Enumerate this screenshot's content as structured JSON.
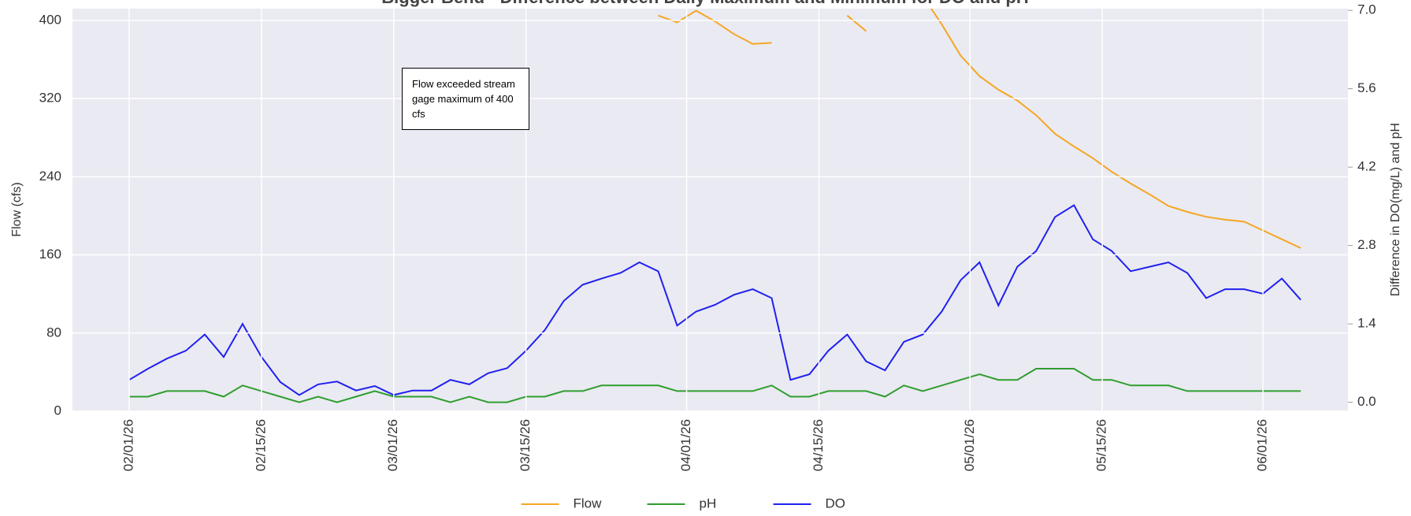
{
  "chart_data": {
    "type": "line",
    "title": "Bigger Bend - Difference between Daily Maximum and Minimum for DO and pH",
    "y_label": "Flow (cfs)",
    "y2_label": "Difference in DO(mg/L) and pH",
    "annotation": "Flow exceeded stream gage maximum of 400 cfs",
    "x": [
      "02/01/26",
      "02/03/26",
      "02/05/26",
      "02/07/26",
      "02/09/26",
      "02/11/26",
      "02/13/26",
      "02/15/26",
      "02/17/26",
      "02/19/26",
      "02/21/26",
      "02/23/26",
      "02/25/26",
      "02/27/26",
      "03/01/26",
      "03/03/26",
      "03/05/26",
      "03/07/26",
      "03/09/26",
      "03/11/26",
      "03/13/26",
      "03/15/26",
      "03/17/26",
      "03/19/26",
      "03/21/26",
      "03/23/26",
      "03/25/26",
      "03/27/26",
      "03/29/26",
      "03/31/26",
      "04/02/26",
      "04/04/26",
      "04/06/26",
      "04/08/26",
      "04/10/26",
      "04/12/26",
      "04/14/26",
      "04/16/26",
      "04/18/26",
      "04/20/26",
      "04/22/26",
      "04/24/26",
      "04/26/26",
      "04/28/26",
      "04/30/26",
      "05/02/26",
      "05/04/26",
      "05/06/26",
      "05/08/26",
      "05/10/26",
      "05/12/26",
      "05/14/26",
      "05/16/26",
      "05/18/26",
      "05/20/26",
      "05/22/26",
      "05/24/26",
      "05/26/26",
      "05/28/26",
      "05/30/26",
      "06/01/26",
      "06/03/26",
      "06/05/26"
    ],
    "xlim": [
      "01/26/26",
      "06/10/26"
    ],
    "xticks": [
      "02/01/26",
      "02/15/26",
      "03/01/26",
      "03/15/26",
      "04/01/26",
      "04/15/26",
      "05/01/26",
      "05/15/26",
      "06/01/26"
    ],
    "ylim": [
      0,
      412
    ],
    "yticks": [
      0,
      80,
      160,
      240,
      320,
      400
    ],
    "y2lim": [
      -0.16,
      7.03
    ],
    "y2ticks": [
      {
        "value": 0,
        "label": "0.0"
      },
      1.4,
      2.8,
      4.2,
      5.6,
      {
        "value": 7,
        "label": "7.0"
      }
    ],
    "grid": true,
    "legend": "lower center",
    "series": [
      {
        "name": "Flow",
        "color": "#f5a623",
        "values": [
          null,
          null,
          null,
          null,
          null,
          null,
          null,
          null,
          null,
          null,
          null,
          null,
          null,
          null,
          null,
          null,
          null,
          null,
          null,
          null,
          null,
          null,
          null,
          null,
          null,
          null,
          null,
          null,
          405,
          398,
          410,
          399,
          386,
          376,
          377,
          null,
          null,
          null,
          405,
          389,
          null,
          null,
          425,
          396,
          364,
          343,
          329,
          318,
          303,
          284,
          271,
          259,
          245,
          233,
          222,
          210,
          204,
          199,
          196,
          194,
          185,
          176,
          167
        ]
      },
      {
        "name": "pH",
        "color": "#2e9e2e",
        "axis": "y2",
        "values": [
          0.1,
          0.1,
          0.2,
          0.2,
          0.2,
          0.1,
          0.3,
          0.2,
          0.1,
          0.0,
          0.1,
          0.0,
          0.1,
          0.2,
          0.1,
          0.1,
          0.1,
          0.0,
          0.1,
          0.0,
          0.0,
          0.1,
          0.1,
          0.2,
          0.2,
          0.3,
          0.3,
          0.3,
          0.3,
          0.2,
          0.2,
          0.2,
          0.2,
          0.2,
          0.3,
          0.1,
          0.1,
          0.2,
          0.2,
          0.2,
          0.1,
          0.3,
          0.2,
          0.3,
          0.4,
          0.5,
          0.4,
          0.4,
          0.6,
          0.6,
          0.6,
          0.4,
          0.4,
          0.3,
          0.3,
          0.3,
          0.2,
          0.2,
          0.2,
          0.2,
          0.2,
          0.2,
          0.2
        ]
      },
      {
        "name": "DO",
        "color": "#2020f0",
        "axis": "y2",
        "values": [
          0.4,
          0.6,
          0.78,
          0.92,
          1.21,
          0.81,
          1.4,
          0.81,
          0.36,
          0.13,
          0.32,
          0.37,
          0.21,
          0.29,
          0.13,
          0.21,
          0.21,
          0.4,
          0.32,
          0.52,
          0.61,
          0.92,
          1.29,
          1.81,
          2.1,
          2.21,
          2.31,
          2.5,
          2.34,
          1.37,
          1.62,
          1.74,
          1.92,
          2.02,
          1.86,
          0.4,
          0.5,
          0.92,
          1.21,
          0.73,
          0.57,
          1.08,
          1.21,
          1.62,
          2.18,
          2.5,
          1.73,
          2.42,
          2.7,
          3.31,
          3.52,
          2.91,
          2.7,
          2.34,
          2.42,
          2.5,
          2.31,
          1.86,
          2.02,
          2.02,
          1.94,
          2.21,
          1.83
        ]
      }
    ]
  }
}
